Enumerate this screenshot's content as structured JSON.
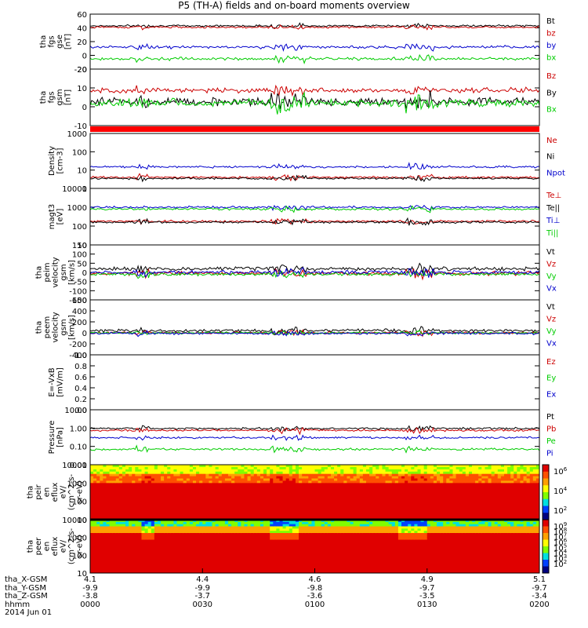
{
  "title": "P5 (TH-A) fields and on-board moments overview",
  "chart_data": {
    "type": "line",
    "time_range": [
      "0000",
      "0200"
    ],
    "panels": [
      {
        "id": "fgs_gse",
        "ylabel": [
          "tha",
          "fgs",
          "gse",
          "[nT]"
        ],
        "yticks": [
          "60",
          "40",
          "20",
          "0",
          "-20"
        ],
        "ylim": [
          -20,
          60
        ],
        "series": [
          {
            "name": "Bt",
            "color": "#000000",
            "level": 43,
            "noise": 2
          },
          {
            "name": "bz",
            "color": "#cc0000",
            "level": 41,
            "noise": 2
          },
          {
            "name": "by",
            "color": "#0000cc",
            "level": 12,
            "noise": 3
          },
          {
            "name": "bx",
            "color": "#00cc00",
            "level": -5,
            "noise": 3
          }
        ]
      },
      {
        "id": "fgs_gsm",
        "ylabel": [
          "tha",
          "fgs",
          "gsm",
          "[nT]"
        ],
        "yticks": [
          "20",
          "10",
          "0",
          "-10"
        ],
        "ylim": [
          -15,
          25
        ],
        "series": [
          {
            "name": "Bz",
            "color": "#cc0000",
            "level": 10,
            "noise": 2.5
          },
          {
            "name": "By",
            "color": "#000000",
            "level": 2,
            "noise": 4
          },
          {
            "name": "Bx",
            "color": "#00cc00",
            "level": 1,
            "noise": 4
          }
        ]
      },
      {
        "id": "density",
        "ylabel": [
          "Density",
          "[cm-3]"
        ],
        "yticks": [
          "1000",
          "100",
          "10",
          "1"
        ],
        "ylim": [
          1,
          1000
        ],
        "scale": "log",
        "series": [
          {
            "name": "Ne",
            "color": "#cc0000",
            "level": 4,
            "noise": 1.5
          },
          {
            "name": "Ni",
            "color": "#000000",
            "level": 3.5,
            "noise": 1.5
          },
          {
            "name": "Npot",
            "color": "#0000cc",
            "level": 15,
            "noise": 8
          }
        ]
      },
      {
        "id": "temperature",
        "ylabel": [
          "magt3",
          "[eV]"
        ],
        "yticks": [
          "10000",
          "1000",
          "100",
          "10"
        ],
        "ylim": [
          10,
          10000
        ],
        "scale": "log",
        "series": [
          {
            "name": "Te⊥",
            "color": "#cc0000",
            "level": 180,
            "noise": 40
          },
          {
            "name": "Te||",
            "color": "#000000",
            "level": 160,
            "noise": 40
          },
          {
            "name": "Ti⊥",
            "color": "#0000cc",
            "level": 1000,
            "noise": 150
          },
          {
            "name": "Ti||",
            "color": "#00cc00",
            "level": 800,
            "noise": 150
          }
        ]
      },
      {
        "id": "peim_velocity",
        "ylabel": [
          "tha",
          "peim",
          "velocity",
          "gsm",
          "[km/s]"
        ],
        "yticks": [
          "150",
          "100",
          "50",
          "0",
          "-50",
          "-100",
          "-150"
        ],
        "ylim": [
          -150,
          150
        ],
        "series": [
          {
            "name": "Vt",
            "color": "#000000",
            "level": 20,
            "noise": 15
          },
          {
            "name": "Vz",
            "color": "#cc0000",
            "level": -5,
            "noise": 15
          },
          {
            "name": "Vy",
            "color": "#00cc00",
            "level": -10,
            "noise": 12
          },
          {
            "name": "Vx",
            "color": "#0000cc",
            "level": 0,
            "noise": 15
          }
        ]
      },
      {
        "id": "peem_velocity",
        "ylabel": [
          "tha",
          "peem",
          "velocity",
          "gsm",
          "[km/s]"
        ],
        "yticks": [
          "600",
          "400",
          "200",
          "0",
          "-200",
          "-400"
        ],
        "ylim": [
          -400,
          600
        ],
        "series": [
          {
            "name": "Vt",
            "color": "#000000",
            "level": 40,
            "noise": 40
          },
          {
            "name": "Vz",
            "color": "#cc0000",
            "level": 0,
            "noise": 30
          },
          {
            "name": "Vy",
            "color": "#00cc00",
            "level": 0,
            "noise": 25
          },
          {
            "name": "Vx",
            "color": "#0000cc",
            "level": -10,
            "noise": 30
          }
        ]
      },
      {
        "id": "efield",
        "ylabel": [
          "E=-VxB",
          "[mV/m]"
        ],
        "yticks": [
          "1.0",
          "0.8",
          "0.6",
          "0.4",
          "0.2",
          "0.0"
        ],
        "ylim": [
          0,
          1
        ],
        "series": [
          {
            "name": "Ez",
            "color": "#cc0000"
          },
          {
            "name": "Ey",
            "color": "#00cc00"
          },
          {
            "name": "Ex",
            "color": "#0000cc"
          }
        ]
      },
      {
        "id": "pressure",
        "ylabel": [
          "Pressure",
          "[nPa]"
        ],
        "yticks": [
          "10.00",
          "1.00",
          "0.10",
          "0.01"
        ],
        "ylim": [
          0.01,
          10
        ],
        "scale": "log",
        "series": [
          {
            "name": "Pt",
            "color": "#000000",
            "level": 0.95,
            "noise": 0.05
          },
          {
            "name": "Pb",
            "color": "#cc0000",
            "level": 0.75,
            "noise": 0.05
          },
          {
            "name": "Pe",
            "color": "#00cc00",
            "level": 0.07,
            "noise": 0.02
          },
          {
            "name": "Pi",
            "color": "#0000cc",
            "level": 0.3,
            "noise": 0.05
          }
        ]
      },
      {
        "id": "peir_spectrogram",
        "type": "heatmap",
        "ylabel": [
          "tha",
          "peir",
          "en",
          "eflux",
          "eV/",
          "(cm^2-s-",
          "sr-eV)"
        ],
        "yticks": [
          "10000",
          "1000",
          "100",
          "10"
        ],
        "colorbar_ticks": [
          "10^6",
          "10^4",
          "10^2"
        ]
      },
      {
        "id": "peer_spectrogram",
        "type": "heatmap",
        "ylabel": [
          "tha",
          "peer",
          "en",
          "eflux",
          "eV/",
          "(cm^2-s-",
          "sr-eV)"
        ],
        "yticks": [
          "10000",
          "1000",
          "100",
          "10"
        ],
        "colorbar_ticks": [
          "10^9",
          "10^8",
          "10^7",
          "10^6",
          "10^5",
          "10^4",
          "10^3",
          "10^2"
        ]
      }
    ],
    "x_axis": {
      "rows": [
        {
          "label": "tha_X-GSM",
          "values": [
            "4.1",
            "4.4",
            "4.6",
            "4.9",
            "5.1"
          ]
        },
        {
          "label": "tha_Y-GSM",
          "values": [
            "-9.9",
            "-9.9",
            "-9.8",
            "-9.7",
            "-9.7"
          ]
        },
        {
          "label": "tha_Z-GSM",
          "values": [
            "-3.8",
            "-3.7",
            "-3.6",
            "-3.5",
            "-3.4"
          ]
        },
        {
          "label": "hhmm",
          "values": [
            "0000",
            "0030",
            "0100",
            "0130",
            "0200"
          ]
        }
      ],
      "date": "2014 Jun 01"
    }
  }
}
